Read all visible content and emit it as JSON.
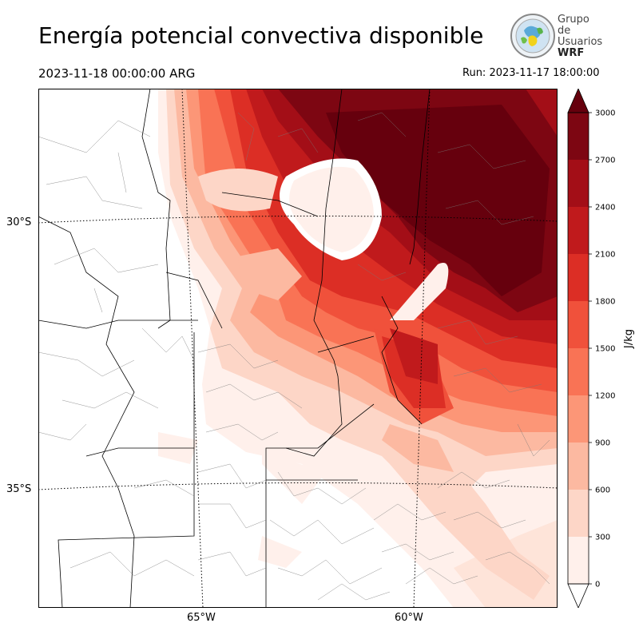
{
  "title": "Energía potencial convectiva disponible",
  "valid_time": "2023-11-18 00:00:00 ARG",
  "run_time": "Run: 2023-11-17 18:00:00",
  "logo": {
    "line1": "Grupo de",
    "line2": "Usuarios",
    "line3": "WRF"
  },
  "lat_labels": [
    "30°S",
    "35°S"
  ],
  "lon_labels": [
    "65°W",
    "60°W"
  ],
  "colorbar": {
    "unit": "J/kg",
    "ticks": [
      "0",
      "300",
      "600",
      "900",
      "1200",
      "1500",
      "1800",
      "2100",
      "2400",
      "2700",
      "3000"
    ],
    "colors": [
      "#fff0eb",
      "#fdd6c7",
      "#fcb9a1",
      "#fc9677",
      "#f97355",
      "#f0513b",
      "#dc2e25",
      "#c01a1c",
      "#a30e17",
      "#7d0612",
      "#66000d"
    ]
  }
}
